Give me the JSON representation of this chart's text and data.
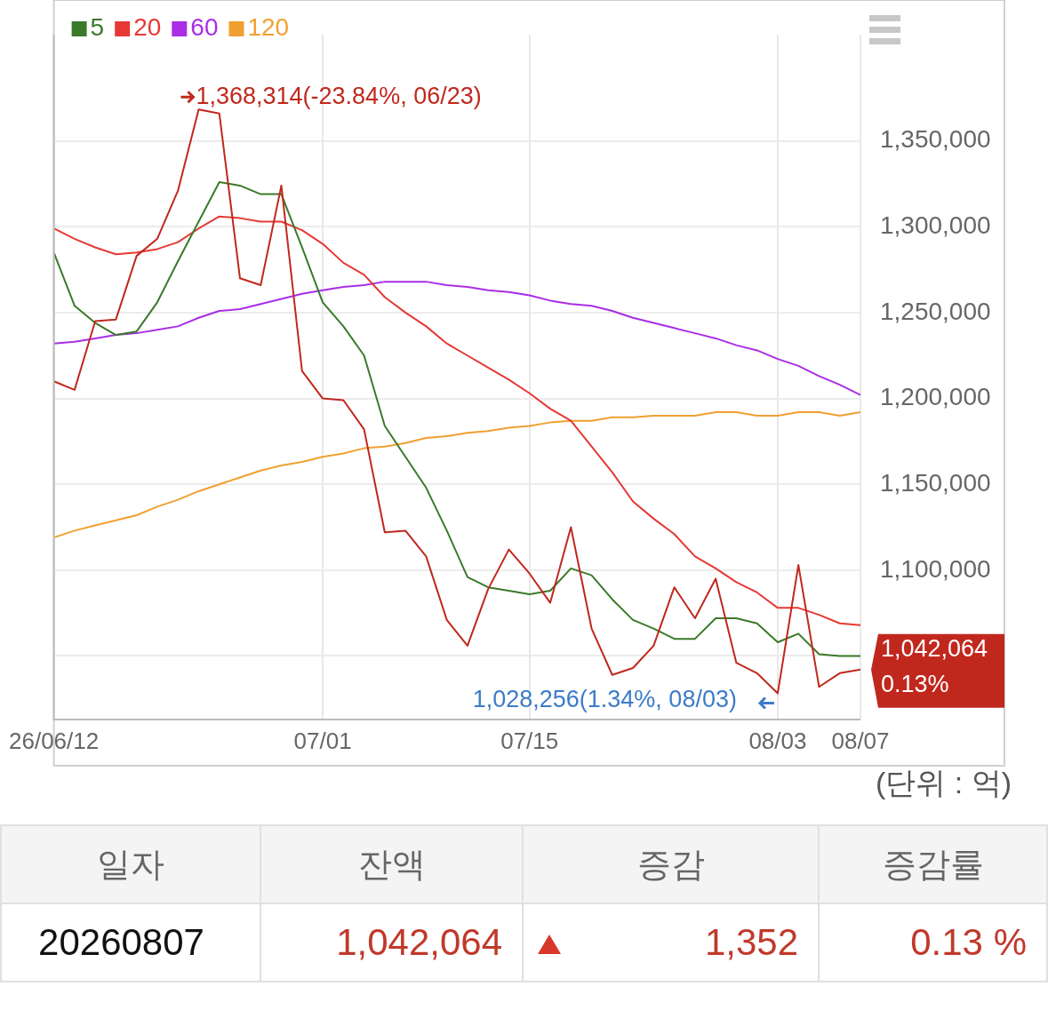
{
  "chart_data": {
    "type": "line",
    "categories": [
      "26/06/12",
      null,
      null,
      null,
      null,
      null,
      null,
      null,
      null,
      null,
      null,
      null,
      null,
      "07/01",
      null,
      null,
      null,
      null,
      null,
      null,
      null,
      null,
      null,
      "07/15",
      null,
      null,
      null,
      null,
      null,
      null,
      null,
      null,
      null,
      null,
      null,
      "08/03",
      null,
      null,
      null,
      "08/07"
    ],
    "series": [
      {
        "color": "#c0281e",
        "values": [
          1210000,
          1205000,
          1245000,
          1246000,
          1283000,
          1293000,
          1321000,
          1368314,
          1366000,
          1270000,
          1266000,
          1324000,
          1216000,
          1200000,
          1199000,
          1182000,
          1122000,
          1123000,
          1108000,
          1071000,
          1056000,
          1089000,
          1112000,
          1098000,
          1081000,
          1125000,
          1066000,
          1039000,
          1043000,
          1056000,
          1090000,
          1072000,
          1095000,
          1046000,
          1040000,
          1028256,
          1103000,
          1032000,
          1040000,
          1042064
        ]
      },
      {
        "name": "5",
        "color": "#3a7a2a",
        "values": [
          1285000,
          1254000,
          1244000,
          1237000,
          1239000,
          1256000,
          1280000,
          1303000,
          1326000,
          1324000,
          1319000,
          1319000,
          1288000,
          1256000,
          1242000,
          1225000,
          1184000,
          1166000,
          1148000,
          1123000,
          1096000,
          1090000,
          1088000,
          1086000,
          1088000,
          1101000,
          1097000,
          1083000,
          1071000,
          1066000,
          1060000,
          1060000,
          1072000,
          1072000,
          1069000,
          1058000,
          1063000,
          1051000,
          1050000,
          1050000
        ]
      },
      {
        "name": "20",
        "color": "#e53935",
        "values": [
          1299000,
          1293000,
          1288000,
          1284000,
          1285000,
          1287000,
          1291000,
          1299000,
          1306000,
          1305000,
          1303000,
          1303000,
          1298000,
          1290000,
          1279000,
          1272000,
          1259000,
          1250000,
          1242000,
          1232000,
          1225000,
          1218000,
          1211000,
          1203000,
          1194000,
          1187000,
          1172000,
          1157000,
          1140000,
          1130000,
          1121000,
          1108000,
          1101000,
          1093000,
          1087000,
          1078000,
          1078000,
          1074000,
          1069000,
          1068000
        ]
      },
      {
        "name": "60",
        "color": "#a92ee6",
        "values": [
          1232000,
          1233000,
          1235000,
          1237000,
          1238000,
          1240000,
          1242000,
          1247000,
          1251000,
          1252000,
          1255000,
          1258000,
          1261000,
          1263000,
          1265000,
          1266000,
          1268000,
          1268000,
          1268000,
          1266000,
          1265000,
          1263000,
          1262000,
          1260000,
          1257000,
          1255000,
          1254000,
          1251000,
          1247000,
          1244000,
          1241000,
          1238000,
          1235000,
          1231000,
          1228000,
          1223000,
          1219000,
          1213000,
          1208000,
          1202000
        ]
      },
      {
        "name": "120",
        "color": "#f0a030",
        "values": [
          1119000,
          1123000,
          1126000,
          1129000,
          1132000,
          1137000,
          1141000,
          1146000,
          1150000,
          1154000,
          1158000,
          1161000,
          1163000,
          1166000,
          1168000,
          1171000,
          1172000,
          1174000,
          1177000,
          1178000,
          1180000,
          1181000,
          1183000,
          1184000,
          1186000,
          1187000,
          1187000,
          1189000,
          1189000,
          1190000,
          1190000,
          1190000,
          1192000,
          1192000,
          1190000,
          1190000,
          1192000,
          1192000,
          1190000,
          1192000
        ]
      }
    ],
    "ylim": [
      1013000,
      1412000
    ],
    "yticks": [
      {
        "value": 1050000,
        "label": null
      },
      {
        "value": 1100000,
        "label": "1,100,000"
      },
      {
        "value": 1150000,
        "label": "1,150,000"
      },
      {
        "value": 1200000,
        "label": "1,200,000"
      },
      {
        "value": 1250000,
        "label": "1,250,000"
      },
      {
        "value": 1300000,
        "label": "1,300,000"
      },
      {
        "value": 1350000,
        "label": "1,350,000"
      }
    ],
    "grid": true,
    "legend": "top left",
    "annotations": [
      "1,368,314(-23.84%, 06/23)",
      {
        "text": "1,028,256(1.34%, 08/03)",
        "x": "08/03",
        "y": 1028256
      },
      "1,042,064",
      "0.13%",
      "(단위 : 억)",
      "일자",
      "잔액",
      "증감",
      "증감률",
      "20260807",
      "1,042,064",
      "1,352",
      "0.13 %"
    ]
  }
}
